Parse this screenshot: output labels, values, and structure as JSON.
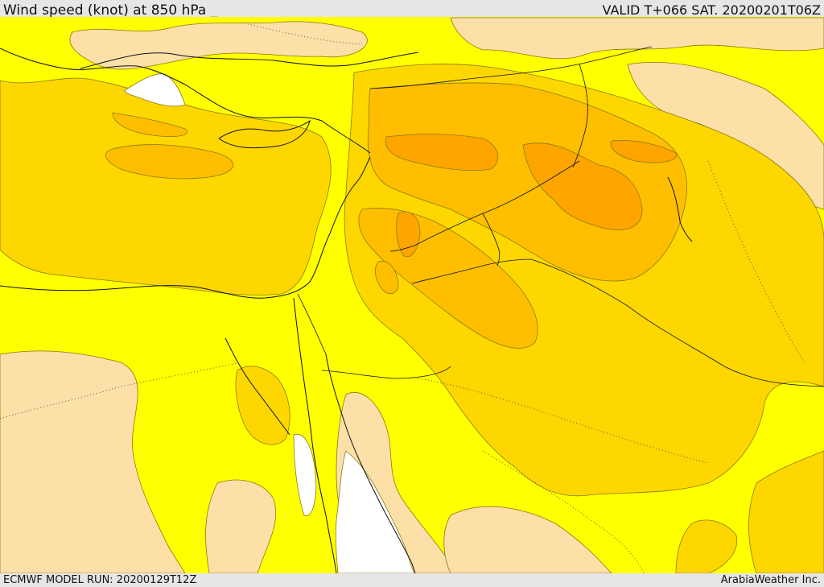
{
  "header": {
    "title": "Wind speed (knot) at 850 hPa _",
    "valid": "VALID T+066 SAT. 20200201T06Z"
  },
  "footer": {
    "model_run": "ECMWF MODEL RUN: 20200129T12Z",
    "credit": "ArabiaWeather Inc."
  },
  "colors": {
    "weak": "#fde0a8",
    "low": "#ffff00",
    "moderate": "#ffd700",
    "strong": "#ffbf00",
    "stronger": "#ffa500",
    "none": "#ffffff"
  }
}
